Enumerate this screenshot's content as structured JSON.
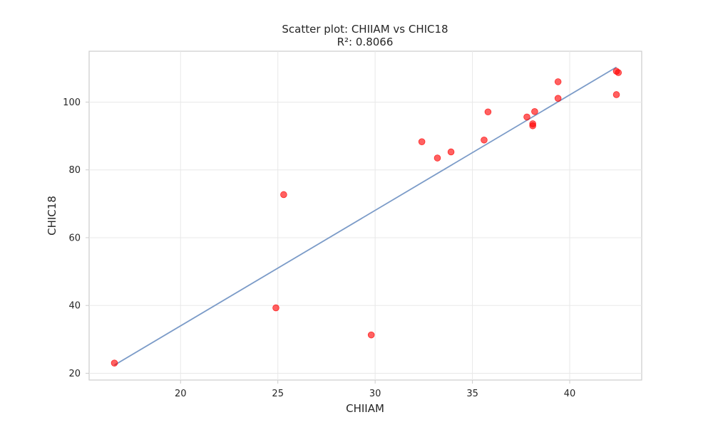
{
  "chart_data": {
    "type": "scatter",
    "title": "Scatter plot: CHIIAM vs CHIC18",
    "subtitle": "R²: 0.8066",
    "xlabel": "CHIIAM",
    "ylabel": "CHIC18",
    "xlim": [
      15.3,
      43.7
    ],
    "ylim": [
      18.0,
      115.0
    ],
    "xticks": [
      20,
      25,
      30,
      35,
      40
    ],
    "yticks": [
      20,
      40,
      60,
      80,
      100
    ],
    "grid": true,
    "series": [
      {
        "marker_color": "#ff0000",
        "x": [
          16.6,
          24.9,
          25.3,
          29.8,
          32.4,
          33.2,
          33.9,
          35.6,
          35.8,
          37.8,
          38.1,
          38.1,
          38.2,
          39.4,
          39.4,
          42.4,
          42.4,
          42.5
        ],
        "y": [
          23.0,
          39.3,
          72.7,
          31.3,
          88.3,
          83.5,
          85.3,
          88.8,
          97.1,
          95.6,
          93.0,
          93.6,
          97.2,
          106.0,
          101.1,
          109.1,
          102.2,
          108.7
        ]
      },
      {
        "line_color": "#7b9bc8",
        "x": [
          16.6,
          42.4
        ],
        "y": [
          22.4,
          110.3
        ]
      }
    ]
  }
}
